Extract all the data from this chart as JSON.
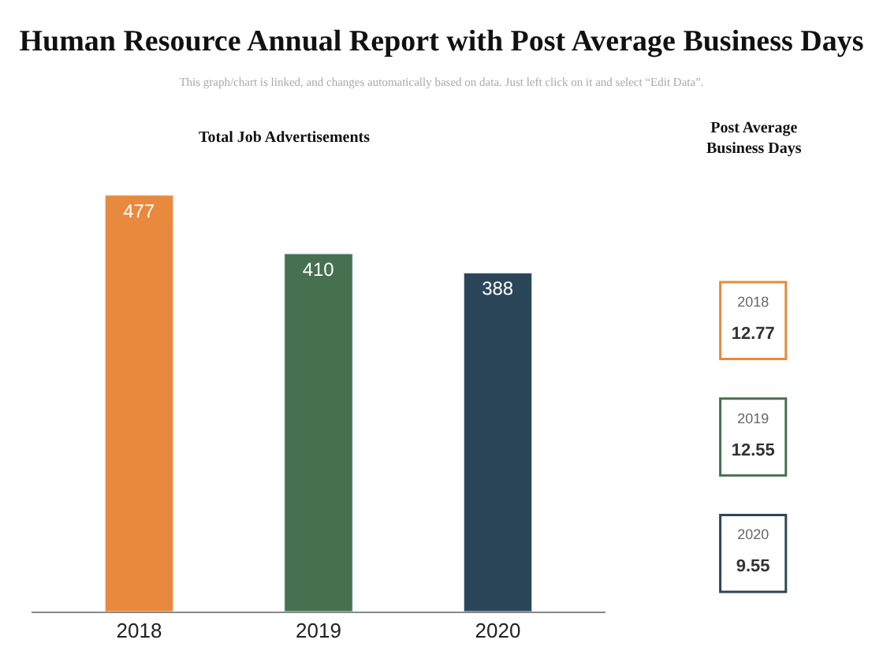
{
  "chart_data": [
    {
      "type": "bar",
      "title": "Human Resource Annual Report with Post Average Business Days",
      "subtitle": "This graph/chart is linked, and changes automatically based on data. Just left click on it and select “Edit Data”.",
      "annotations": [
        "Total Job Advertisements"
      ],
      "categories": [
        "2018",
        "2019",
        "2020"
      ],
      "values": [
        477,
        410,
        388
      ],
      "colors": [
        "#e8893d",
        "#46704f",
        "#2c4659"
      ],
      "data_labels": true,
      "legend": false,
      "tick_labels": "x"
    },
    {
      "type": "other",
      "title": "Post Average Business Days",
      "categories": [
        "2018",
        "2019",
        "2020"
      ],
      "values": [
        12.77,
        12.55,
        9.55
      ],
      "data_labels": true,
      "colors": [
        "#e8893d",
        "#46704f",
        "#2c4659"
      ]
    }
  ]
}
